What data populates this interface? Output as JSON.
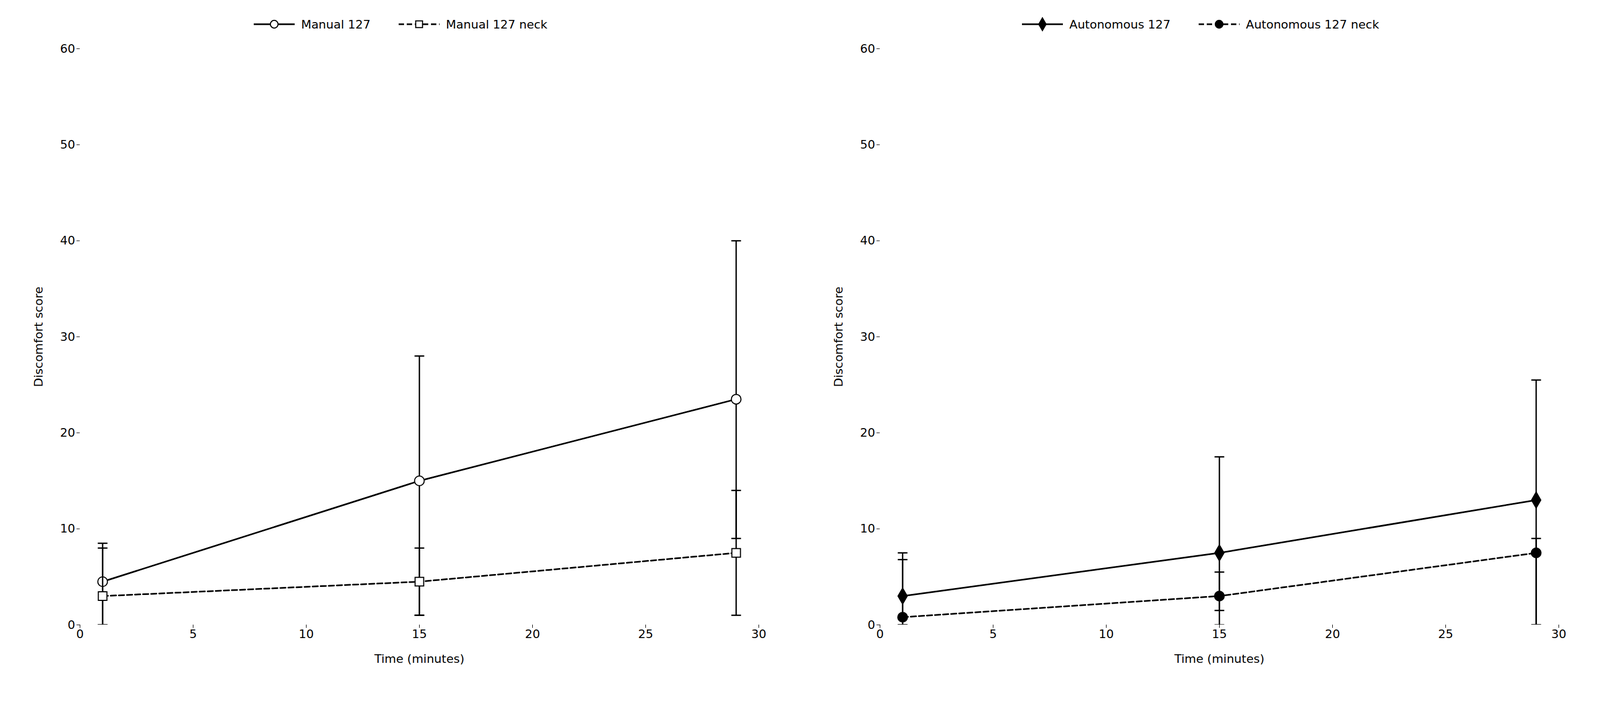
{
  "chart_data": [
    {
      "type": "line",
      "xlabel": "Time (minutes)",
      "ylabel": "Discomfort score",
      "xlim": [
        0,
        30
      ],
      "ylim": [
        0,
        60
      ],
      "xticks": [
        0,
        5,
        10,
        15,
        20,
        25,
        30
      ],
      "yticks": [
        0,
        10,
        20,
        30,
        40,
        50,
        60
      ],
      "grid": false,
      "legend": "top",
      "x": [
        1,
        15,
        29
      ],
      "series": [
        {
          "name": "Manual 127",
          "color": "black",
          "marker": "open_circle",
          "line_style": "solid",
          "values": [
            4.5,
            15.0,
            23.5
          ],
          "error_low": [
            4.5,
            14.0,
            14.5
          ],
          "error_high": [
            3.5,
            13.0,
            16.5
          ]
        },
        {
          "name": "Manual 127 neck",
          "color": "black",
          "marker": "open_square",
          "line_style": "dashed",
          "values": [
            3.0,
            4.5,
            7.5
          ],
          "error_low": [
            3.0,
            3.5,
            6.5
          ],
          "error_high": [
            5.5,
            3.5,
            6.5
          ]
        }
      ]
    },
    {
      "type": "line",
      "xlabel": "Time (minutes)",
      "ylabel": "Discomfort score",
      "xlim": [
        0,
        30
      ],
      "ylim": [
        0,
        60
      ],
      "xticks": [
        0,
        5,
        10,
        15,
        20,
        25,
        30
      ],
      "yticks": [
        0,
        10,
        20,
        30,
        40,
        50,
        60
      ],
      "grid": false,
      "legend": "top",
      "x": [
        1,
        15,
        29
      ],
      "series": [
        {
          "name": "Autonomous 127",
          "color": "black",
          "marker": "diamond",
          "line_style": "solid",
          "values": [
            3.0,
            7.5,
            13.0
          ],
          "error_low": [
            3.0,
            7.5,
            13.0
          ],
          "error_high": [
            4.5,
            10.0,
            12.5
          ]
        },
        {
          "name": "Autonomous 127 neck",
          "color": "black",
          "marker": "circle",
          "line_style": "dashed",
          "values": [
            0.8,
            3.0,
            7.5
          ],
          "error_low": [
            0.8,
            1.5,
            7.5
          ],
          "error_high": [
            6.0,
            2.5,
            1.5
          ]
        }
      ]
    }
  ]
}
